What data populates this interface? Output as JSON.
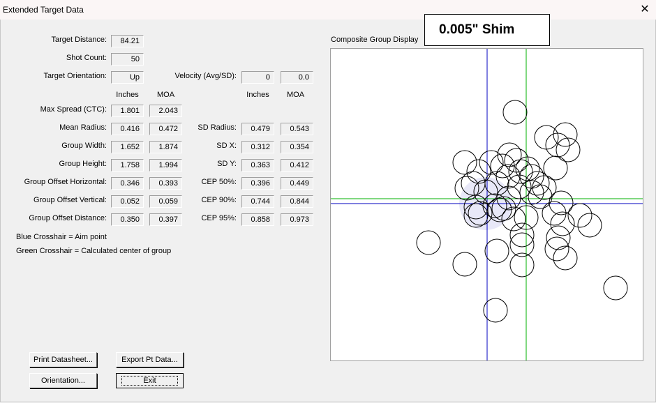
{
  "window": {
    "title": "Extended Target Data"
  },
  "shim_label": "0.005\" Shim",
  "composite_label": "Composite Group Display",
  "target_distance": {
    "label": "Target Distance:",
    "value": "84.21"
  },
  "shot_count": {
    "label": "Shot Count:",
    "value": "50"
  },
  "orientation": {
    "label": "Target Orientation:",
    "value": "Up"
  },
  "velocity": {
    "label": "Velocity (Avg/SD):",
    "avg": "0",
    "sd": "0.0"
  },
  "headers": {
    "inches": "Inches",
    "moa": "MOA"
  },
  "left_rows": [
    {
      "label": "Max Spread (CTC):",
      "inches": "1.801",
      "moa": "2.043"
    },
    {
      "label": "Mean Radius:",
      "inches": "0.416",
      "moa": "0.472"
    },
    {
      "label": "Group Width:",
      "inches": "1.652",
      "moa": "1.874"
    },
    {
      "label": "Group Height:",
      "inches": "1.758",
      "moa": "1.994"
    },
    {
      "label": "Group Offset Horizontal:",
      "inches": "0.346",
      "moa": "0.393"
    },
    {
      "label": "Group Offset Vertical:",
      "inches": "0.052",
      "moa": "0.059"
    },
    {
      "label": "Group Offset Distance:",
      "inches": "0.350",
      "moa": "0.397"
    }
  ],
  "right_rows": [
    {
      "label": "SD Radius:",
      "inches": "0.479",
      "moa": "0.543"
    },
    {
      "label": "SD X:",
      "inches": "0.312",
      "moa": "0.354"
    },
    {
      "label": "SD Y:",
      "inches": "0.363",
      "moa": "0.412"
    },
    {
      "label": "CEP 50%:",
      "inches": "0.396",
      "moa": "0.449"
    },
    {
      "label": "CEP 90%:",
      "inches": "0.744",
      "moa": "0.844"
    },
    {
      "label": "CEP 95%:",
      "inches": "0.858",
      "moa": "0.973"
    }
  ],
  "notes": {
    "blue": "Blue Crosshair = Aim point",
    "green": "Green Crosshair = Calculated center of group"
  },
  "buttons": {
    "print": "Print Datasheet...",
    "export": "Export Pt Data...",
    "orientation": "Orientation...",
    "exit": "Exit"
  },
  "colors": {
    "aim": "#0000c0",
    "center": "#00b000",
    "cep_fill": "#e8e8f8"
  }
}
